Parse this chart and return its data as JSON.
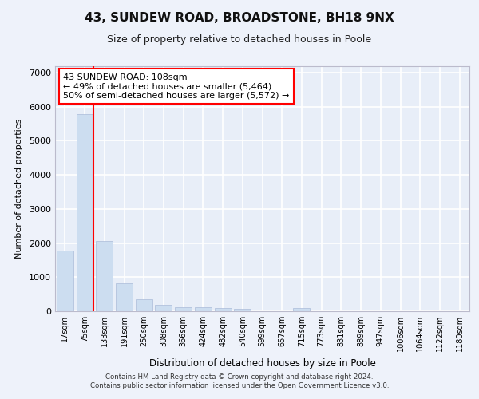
{
  "title": "43, SUNDEW ROAD, BROADSTONE, BH18 9NX",
  "subtitle": "Size of property relative to detached houses in Poole",
  "xlabel": "Distribution of detached houses by size in Poole",
  "ylabel": "Number of detached properties",
  "bar_color": "#ccddf0",
  "bar_edgecolor": "#aabbd8",
  "categories": [
    "17sqm",
    "75sqm",
    "133sqm",
    "191sqm",
    "250sqm",
    "308sqm",
    "366sqm",
    "424sqm",
    "482sqm",
    "540sqm",
    "599sqm",
    "657sqm",
    "715sqm",
    "773sqm",
    "831sqm",
    "889sqm",
    "947sqm",
    "1006sqm",
    "1064sqm",
    "1122sqm",
    "1180sqm"
  ],
  "values": [
    1780,
    5780,
    2050,
    810,
    340,
    195,
    115,
    110,
    95,
    75,
    0,
    0,
    90,
    0,
    0,
    0,
    0,
    0,
    0,
    0,
    0
  ],
  "annotation_text": "43 SUNDEW ROAD: 108sqm\n← 49% of detached houses are smaller (5,464)\n50% of semi-detached houses are larger (5,572) →",
  "annotation_box_color": "white",
  "annotation_box_edgecolor": "red",
  "vline_x_index": 1,
  "vline_color": "red",
  "ylim": [
    0,
    7200
  ],
  "yticks": [
    0,
    1000,
    2000,
    3000,
    4000,
    5000,
    6000,
    7000
  ],
  "background_color": "#eef2fa",
  "axes_background": "#e8eef8",
  "grid_color": "white",
  "footer_line1": "Contains HM Land Registry data © Crown copyright and database right 2024.",
  "footer_line2": "Contains public sector information licensed under the Open Government Licence v3.0."
}
